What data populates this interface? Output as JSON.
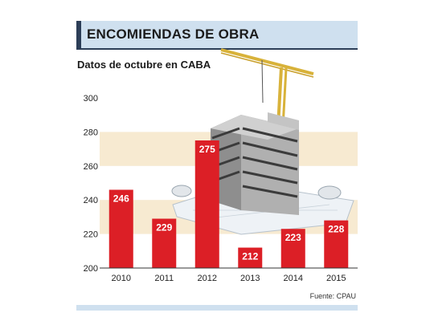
{
  "header": {
    "title": "ENCOMIENDAS DE OBRA",
    "subtitle": "Datos de octubre en CABA"
  },
  "source": "Fuente: CPAU",
  "colors": {
    "bar": "#dc1f26",
    "band": "#f7ead1",
    "header_bg": "#cfe0ef",
    "accent": "#2c3e57"
  },
  "chart_data": {
    "type": "bar",
    "title": "ENCOMIENDAS DE OBRA",
    "subtitle": "Datos de octubre en CABA",
    "categories": [
      "2010",
      "2011",
      "2012",
      "2013",
      "2014",
      "2015"
    ],
    "values": [
      246,
      229,
      275,
      212,
      223,
      228
    ],
    "ylim": [
      200,
      300
    ],
    "yticks": [
      200,
      220,
      240,
      260,
      280,
      300
    ],
    "data_labels": true,
    "grid": "alternating horizontal bands",
    "xlabel": "",
    "ylabel": ""
  }
}
